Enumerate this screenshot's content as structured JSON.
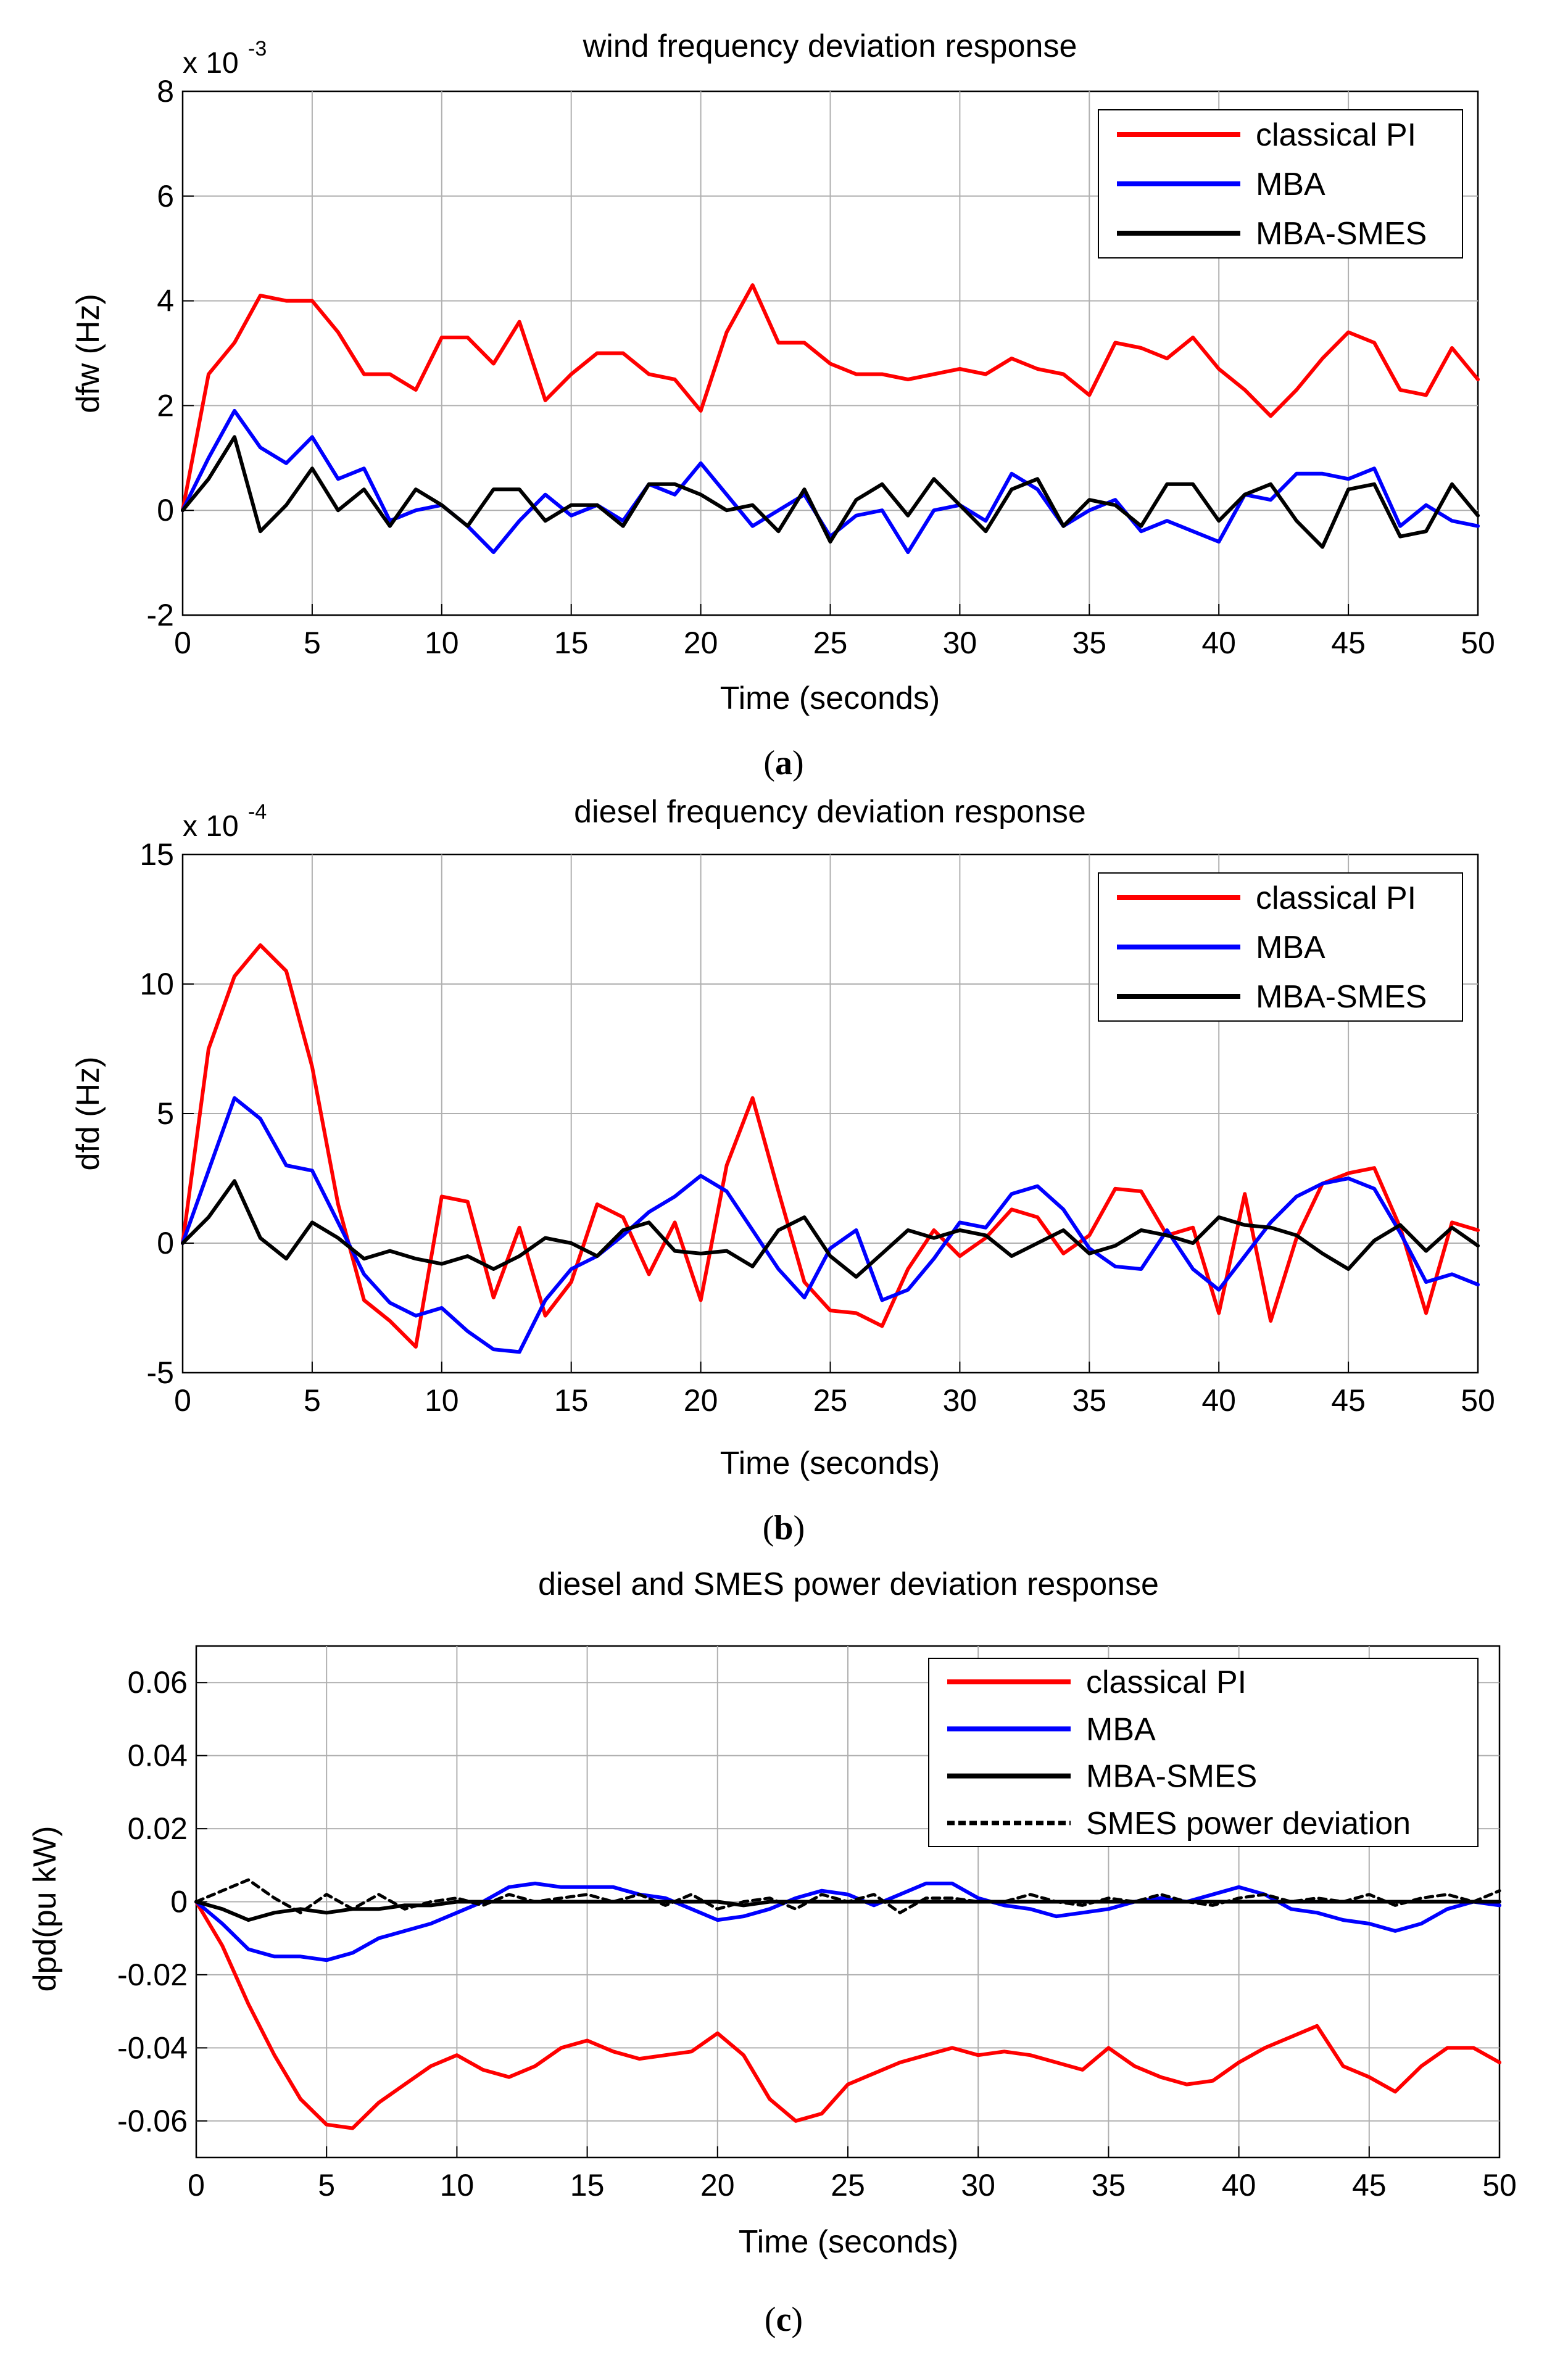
{
  "figure": {
    "panels": [
      {
        "id": "a",
        "caption_open": "(",
        "caption_letter": "a",
        "caption_close": ")",
        "exponent_base": "x 10",
        "exponent_power": "-3"
      },
      {
        "id": "b",
        "caption_open": "(",
        "caption_letter": "b",
        "caption_close": ")",
        "exponent_base": "x 10",
        "exponent_power": "-4"
      },
      {
        "id": "c",
        "caption_open": "(",
        "caption_letter": "c",
        "caption_close": ")",
        "exponent_base": "",
        "exponent_power": ""
      }
    ]
  },
  "colors": {
    "classical_pi": "#ff0000",
    "mba": "#0000ff",
    "mba_smes": "#000000",
    "smes_power": "#000000"
  },
  "chart_data": [
    {
      "type": "line",
      "title": "wind frequency deviation response",
      "xlabel": "Time (seconds)",
      "ylabel": "dfw (Hz)",
      "y_scale_note": "x 10^-3",
      "xlim": [
        0,
        50
      ],
      "ylim": [
        -2,
        8
      ],
      "xticks": [
        "0",
        "5",
        "10",
        "15",
        "20",
        "25",
        "30",
        "35",
        "40",
        "45",
        "50"
      ],
      "yticks": [
        "-2",
        "0",
        "2",
        "4",
        "6",
        "8"
      ],
      "grid": true,
      "legend_position": "top-right",
      "x": [
        0,
        1,
        2,
        3,
        4,
        5,
        6,
        7,
        8,
        9,
        10,
        11,
        12,
        13,
        14,
        15,
        16,
        17,
        18,
        19,
        20,
        21,
        22,
        23,
        24,
        25,
        26,
        27,
        28,
        29,
        30,
        31,
        32,
        33,
        34,
        35,
        36,
        37,
        38,
        39,
        40,
        41,
        42,
        43,
        44,
        45,
        46,
        47,
        48,
        49,
        50
      ],
      "series": [
        {
          "name": "classical PI",
          "color": "#ff0000",
          "style": "solid",
          "values": [
            0,
            2.6,
            3.2,
            4.1,
            4.0,
            4.0,
            3.4,
            2.6,
            2.6,
            2.3,
            3.3,
            3.3,
            2.8,
            3.6,
            2.1,
            2.6,
            3.0,
            3.0,
            2.6,
            2.5,
            1.9,
            3.4,
            4.3,
            3.2,
            3.2,
            2.8,
            2.6,
            2.6,
            2.5,
            2.6,
            2.7,
            2.6,
            2.9,
            2.7,
            2.6,
            2.2,
            3.2,
            3.1,
            2.9,
            3.3,
            2.7,
            2.3,
            1.8,
            2.3,
            2.9,
            3.4,
            3.2,
            2.3,
            2.2,
            3.1,
            2.5
          ]
        },
        {
          "name": "MBA",
          "color": "#0000ff",
          "style": "solid",
          "values": [
            0,
            1.0,
            1.9,
            1.2,
            0.9,
            1.4,
            0.6,
            0.8,
            -0.2,
            0,
            0.1,
            -0.3,
            -0.8,
            -0.2,
            0.3,
            -0.1,
            0.1,
            -0.2,
            0.5,
            0.3,
            0.9,
            0.3,
            -0.3,
            0,
            0.3,
            -0.5,
            -0.1,
            0,
            -0.8,
            0,
            0.1,
            -0.2,
            0.7,
            0.4,
            -0.3,
            0,
            0.2,
            -0.4,
            -0.2,
            -0.4,
            -0.6,
            0.3,
            0.2,
            0.7,
            0.7,
            0.6,
            0.8,
            -0.3,
            0.1,
            -0.2,
            -0.3
          ]
        },
        {
          "name": "MBA-SMES",
          "color": "#000000",
          "style": "solid",
          "values": [
            0,
            0.6,
            1.4,
            -0.4,
            0.1,
            0.8,
            0,
            0.4,
            -0.3,
            0.4,
            0.1,
            -0.3,
            0.4,
            0.4,
            -0.2,
            0.1,
            0.1,
            -0.3,
            0.5,
            0.5,
            0.3,
            0,
            0.1,
            -0.4,
            0.4,
            -0.6,
            0.2,
            0.5,
            -0.1,
            0.6,
            0.1,
            -0.4,
            0.4,
            0.6,
            -0.3,
            0.2,
            0.1,
            -0.3,
            0.5,
            0.5,
            -0.2,
            0.3,
            0.5,
            -0.2,
            -0.7,
            0.4,
            0.5,
            -0.5,
            -0.4,
            0.5,
            -0.1
          ]
        }
      ]
    },
    {
      "type": "line",
      "title": "diesel frequency deviation response",
      "xlabel": "Time (seconds)",
      "ylabel": "dfd (Hz)",
      "y_scale_note": "x 10^-4",
      "xlim": [
        0,
        50
      ],
      "ylim": [
        -5,
        15
      ],
      "xticks": [
        "0",
        "5",
        "10",
        "15",
        "20",
        "25",
        "30",
        "35",
        "40",
        "45",
        "50"
      ],
      "yticks": [
        "-5",
        "0",
        "5",
        "10",
        "15"
      ],
      "grid": true,
      "legend_position": "top-right",
      "x": [
        0,
        1,
        2,
        3,
        4,
        5,
        6,
        7,
        8,
        9,
        10,
        11,
        12,
        13,
        14,
        15,
        16,
        17,
        18,
        19,
        20,
        21,
        22,
        23,
        24,
        25,
        26,
        27,
        28,
        29,
        30,
        31,
        32,
        33,
        34,
        35,
        36,
        37,
        38,
        39,
        40,
        41,
        42,
        43,
        44,
        45,
        46,
        47,
        48,
        49,
        50
      ],
      "series": [
        {
          "name": "classical PI",
          "color": "#ff0000",
          "style": "solid",
          "values": [
            0,
            7.5,
            10.3,
            11.5,
            10.5,
            6.8,
            1.5,
            -2.2,
            -3.0,
            -4.0,
            1.8,
            1.6,
            -2.1,
            0.6,
            -2.8,
            -1.5,
            1.5,
            1.0,
            -1.2,
            0.8,
            -2.2,
            3.0,
            5.6,
            2.0,
            -1.5,
            -2.6,
            -2.7,
            -3.2,
            -1.0,
            0.5,
            -0.5,
            0.2,
            1.3,
            1.0,
            -0.4,
            0.3,
            2.1,
            2.0,
            0.3,
            0.6,
            -2.7,
            1.9,
            -3.0,
            0.2,
            2.3,
            2.7,
            2.9,
            0.6,
            -2.7,
            0.8,
            0.5
          ]
        },
        {
          "name": "MBA",
          "color": "#0000ff",
          "style": "solid",
          "values": [
            0,
            2.8,
            5.6,
            4.8,
            3.0,
            2.8,
            0.8,
            -1.2,
            -2.3,
            -2.8,
            -2.5,
            -3.4,
            -4.1,
            -4.2,
            -2.2,
            -1.0,
            -0.5,
            0.3,
            1.2,
            1.8,
            2.6,
            2.0,
            0.5,
            -1.0,
            -2.1,
            -0.2,
            0.5,
            -2.2,
            -1.8,
            -0.6,
            0.8,
            0.6,
            1.9,
            2.2,
            1.3,
            -0.2,
            -0.9,
            -1.0,
            0.5,
            -1.0,
            -1.8,
            -0.5,
            0.8,
            1.8,
            2.3,
            2.5,
            2.1,
            0.4,
            -1.5,
            -1.2,
            -1.6
          ]
        },
        {
          "name": "MBA-SMES",
          "color": "#000000",
          "style": "solid",
          "values": [
            0,
            1.0,
            2.4,
            0.2,
            -0.6,
            0.8,
            0.2,
            -0.6,
            -0.3,
            -0.6,
            -0.8,
            -0.5,
            -1.0,
            -0.5,
            0.2,
            0,
            -0.5,
            0.5,
            0.8,
            -0.3,
            -0.4,
            -0.3,
            -0.9,
            0.5,
            1.0,
            -0.5,
            -1.3,
            -0.4,
            0.5,
            0.2,
            0.5,
            0.3,
            -0.5,
            0,
            0.5,
            -0.4,
            -0.1,
            0.5,
            0.3,
            0,
            1.0,
            0.7,
            0.6,
            0.3,
            -0.4,
            -1.0,
            0.1,
            0.7,
            -0.3,
            0.6,
            -0.1
          ]
        }
      ]
    },
    {
      "type": "line",
      "title": "diesel and SMES power deviation response",
      "xlabel": "Time (seconds)",
      "ylabel": "dpd(pu kW)",
      "xlim": [
        0,
        50
      ],
      "ylim": [
        -0.07,
        0.07
      ],
      "xticks": [
        "0",
        "5",
        "10",
        "15",
        "20",
        "25",
        "30",
        "35",
        "40",
        "45",
        "50"
      ],
      "yticks": [
        "-0.06",
        "-0.04",
        "-0.02",
        "0",
        "0.02",
        "0.04",
        "0.06"
      ],
      "ytick_values": [
        -0.06,
        -0.04,
        -0.02,
        0,
        0.02,
        0.04,
        0.06
      ],
      "grid": true,
      "legend_position": "top-right",
      "x": [
        0,
        1,
        2,
        3,
        4,
        5,
        6,
        7,
        8,
        9,
        10,
        11,
        12,
        13,
        14,
        15,
        16,
        17,
        18,
        19,
        20,
        21,
        22,
        23,
        24,
        25,
        26,
        27,
        28,
        29,
        30,
        31,
        32,
        33,
        34,
        35,
        36,
        37,
        38,
        39,
        40,
        41,
        42,
        43,
        44,
        45,
        46,
        47,
        48,
        49,
        50
      ],
      "series": [
        {
          "name": "classical PI",
          "color": "#ff0000",
          "style": "solid",
          "values": [
            0,
            -0.012,
            -0.028,
            -0.042,
            -0.054,
            -0.061,
            -0.062,
            -0.055,
            -0.05,
            -0.045,
            -0.042,
            -0.046,
            -0.048,
            -0.045,
            -0.04,
            -0.038,
            -0.041,
            -0.043,
            -0.042,
            -0.041,
            -0.036,
            -0.042,
            -0.054,
            -0.06,
            -0.058,
            -0.05,
            -0.047,
            -0.044,
            -0.042,
            -0.04,
            -0.042,
            -0.041,
            -0.042,
            -0.044,
            -0.046,
            -0.04,
            -0.045,
            -0.048,
            -0.05,
            -0.049,
            -0.044,
            -0.04,
            -0.037,
            -0.034,
            -0.045,
            -0.048,
            -0.052,
            -0.045,
            -0.04,
            -0.04,
            -0.044
          ]
        },
        {
          "name": "MBA",
          "color": "#0000ff",
          "style": "solid",
          "values": [
            0,
            -0.006,
            -0.013,
            -0.015,
            -0.015,
            -0.016,
            -0.014,
            -0.01,
            -0.008,
            -0.006,
            -0.003,
            0,
            0.004,
            0.005,
            0.004,
            0.004,
            0.004,
            0.002,
            0.001,
            -0.002,
            -0.005,
            -0.004,
            -0.002,
            0.001,
            0.003,
            0.002,
            -0.001,
            0.002,
            0.005,
            0.005,
            0.001,
            -0.001,
            -0.002,
            -0.004,
            -0.003,
            -0.002,
            0,
            0.001,
            0,
            0.002,
            0.004,
            0.002,
            -0.002,
            -0.003,
            -0.005,
            -0.006,
            -0.008,
            -0.006,
            -0.002,
            0,
            -0.001
          ]
        },
        {
          "name": "MBA-SMES",
          "color": "#000000",
          "style": "solid",
          "values": [
            0,
            -0.002,
            -0.005,
            -0.003,
            -0.002,
            -0.003,
            -0.002,
            -0.002,
            -0.001,
            -0.001,
            0,
            0,
            0,
            0,
            0,
            0,
            0,
            0,
            0,
            0,
            0,
            -0.001,
            0,
            0,
            0,
            0,
            0,
            0,
            0,
            0,
            0,
            0,
            0,
            0,
            0,
            0,
            0,
            0,
            0,
            0,
            0,
            0,
            0,
            0,
            0,
            0,
            0,
            0,
            0,
            0,
            0
          ]
        },
        {
          "name": "SMES power deviation",
          "color": "#000000",
          "style": "dashed",
          "values": [
            0,
            0.003,
            0.006,
            0.001,
            -0.003,
            0.002,
            -0.002,
            0.002,
            -0.002,
            0,
            0.001,
            -0.001,
            0.002,
            0,
            0.001,
            0.002,
            0,
            0.002,
            -0.001,
            0.002,
            -0.002,
            0,
            0.001,
            -0.002,
            0.002,
            0,
            0.002,
            -0.003,
            0.001,
            0.001,
            0,
            0,
            0.002,
            0,
            -0.001,
            0.001,
            0,
            0.002,
            0,
            -0.001,
            0.001,
            0.002,
            0,
            0.001,
            0,
            0.002,
            -0.001,
            0.001,
            0.002,
            0,
            0.003
          ]
        }
      ]
    }
  ]
}
